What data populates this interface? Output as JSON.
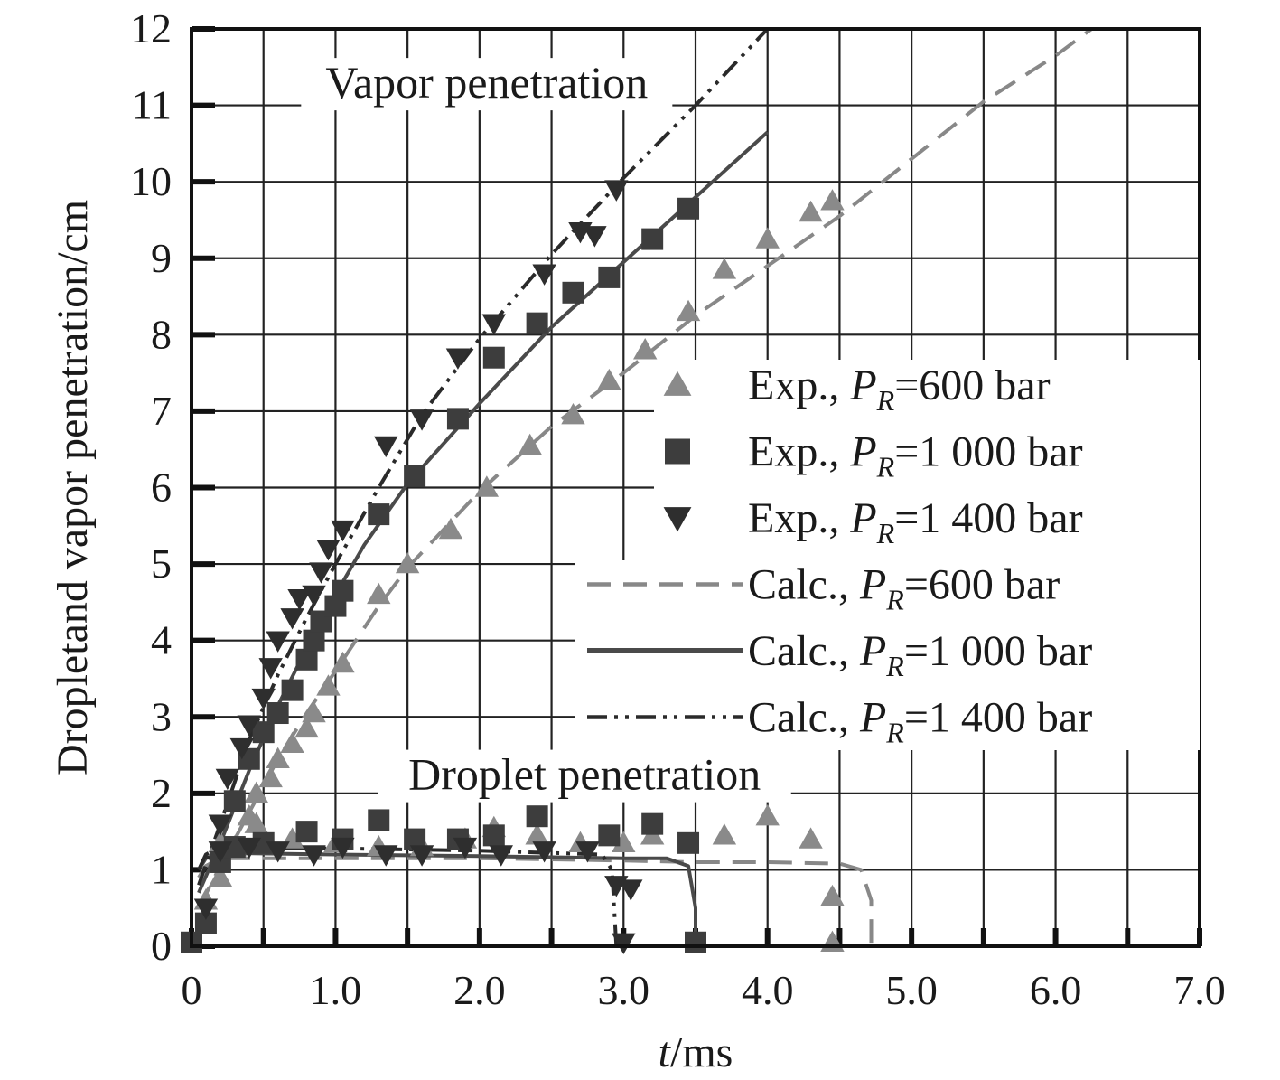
{
  "chart_data": {
    "type": "scatter",
    "title": "",
    "xlabel": {
      "italic": "t",
      "rest": "/ms"
    },
    "ylabel": "Dropletand vapor penetration/cm",
    "xlim": [
      0,
      7.0
    ],
    "ylim": [
      0,
      12
    ],
    "x_ticks": [
      0,
      0.5,
      1.0,
      1.5,
      2.0,
      2.5,
      3.0,
      3.5,
      4.0,
      4.5,
      5.0,
      5.5,
      6.0,
      6.5,
      7.0
    ],
    "x_tick_labels": [
      "0",
      "1.0",
      "2.0",
      "3.0",
      "4.0",
      "5.0",
      "6.0",
      "7.0"
    ],
    "x_tick_label_values": [
      0,
      1.0,
      2.0,
      3.0,
      4.0,
      5.0,
      6.0,
      7.0
    ],
    "y_ticks": [
      0,
      1,
      2,
      3,
      4,
      5,
      6,
      7,
      8,
      9,
      10,
      11,
      12
    ],
    "y_tick_labels": [
      "0",
      "1",
      "2",
      "3",
      "4",
      "5",
      "6",
      "7",
      "8",
      "9",
      "10",
      "11",
      "12"
    ],
    "grid": true,
    "annotations": [
      {
        "text": "Vapor penetration",
        "x": 2.05,
        "y": 11.1
      },
      {
        "text": "Droplet penetration",
        "x": 2.73,
        "y": 2.05
      }
    ],
    "legend": {
      "placement": "right",
      "entries": [
        {
          "prefix": "Exp., ",
          "sub": "R",
          "suffix": "=600 bar",
          "series": "exp600"
        },
        {
          "prefix": "Exp., ",
          "sub": "R",
          "suffix": "=1 000 bar",
          "series": "exp1000"
        },
        {
          "prefix": "Exp., ",
          "sub": "R",
          "suffix": "=1 400 bar",
          "series": "exp1400"
        },
        {
          "prefix": "Calc., ",
          "sub": "R",
          "suffix": "=600 bar",
          "series": "calc600"
        },
        {
          "prefix": "Calc., ",
          "sub": "R",
          "suffix": "=1 000 bar",
          "series": "calc1000"
        },
        {
          "prefix": "Calc.,  ",
          "sub": "R",
          "suffix": "=1 400 bar",
          "series": "calc1400"
        }
      ]
    },
    "series": [
      {
        "id": "exp600",
        "kind": "marker",
        "marker": "triangle-up",
        "color": "#8a8a8a",
        "vapor": [
          [
            0.1,
            0.6
          ],
          [
            0.2,
            0.9
          ],
          [
            0.3,
            1.3
          ],
          [
            0.4,
            1.7
          ],
          [
            0.45,
            2.0
          ],
          [
            0.55,
            2.2
          ],
          [
            0.6,
            2.45
          ],
          [
            0.7,
            2.65
          ],
          [
            0.8,
            2.85
          ],
          [
            0.85,
            3.05
          ],
          [
            0.95,
            3.4
          ],
          [
            1.05,
            3.7
          ],
          [
            1.3,
            4.6
          ],
          [
            1.5,
            5.0
          ],
          [
            1.8,
            5.45
          ],
          [
            2.05,
            6.0
          ],
          [
            2.35,
            6.55
          ],
          [
            2.65,
            6.95
          ],
          [
            2.9,
            7.4
          ],
          [
            3.15,
            7.8
          ],
          [
            3.45,
            8.3
          ],
          [
            3.7,
            8.85
          ],
          [
            4.0,
            9.25
          ],
          [
            4.3,
            9.6
          ],
          [
            4.45,
            9.75
          ]
        ],
        "droplet": [
          [
            0.2,
            1.35
          ],
          [
            0.45,
            1.6
          ],
          [
            0.7,
            1.4
          ],
          [
            1.0,
            1.35
          ],
          [
            1.3,
            1.3
          ],
          [
            1.6,
            1.3
          ],
          [
            1.9,
            1.4
          ],
          [
            2.1,
            1.55
          ],
          [
            2.4,
            1.45
          ],
          [
            2.7,
            1.35
          ],
          [
            3.0,
            1.35
          ],
          [
            3.2,
            1.45
          ],
          [
            3.7,
            1.45
          ],
          [
            4.0,
            1.7
          ],
          [
            4.3,
            1.4
          ],
          [
            4.45,
            0.65
          ],
          [
            4.45,
            0.05
          ]
        ]
      },
      {
        "id": "exp1000",
        "kind": "marker",
        "marker": "square",
        "color": "#3d3d3d",
        "vapor": [
          [
            0.0,
            0.05
          ],
          [
            0.1,
            0.3
          ],
          [
            0.2,
            1.1
          ],
          [
            0.3,
            1.9
          ],
          [
            0.4,
            2.45
          ],
          [
            0.5,
            2.8
          ],
          [
            0.6,
            3.05
          ],
          [
            0.7,
            3.35
          ],
          [
            0.8,
            3.75
          ],
          [
            0.85,
            4.0
          ],
          [
            0.9,
            4.25
          ],
          [
            1.0,
            4.45
          ],
          [
            1.05,
            4.65
          ],
          [
            1.3,
            5.65
          ],
          [
            1.55,
            6.15
          ],
          [
            1.85,
            6.9
          ],
          [
            2.1,
            7.7
          ],
          [
            2.4,
            8.15
          ],
          [
            2.65,
            8.55
          ],
          [
            2.9,
            8.75
          ],
          [
            3.2,
            9.25
          ],
          [
            3.45,
            9.65
          ]
        ],
        "droplet": [
          [
            0.3,
            1.3
          ],
          [
            0.5,
            1.35
          ],
          [
            0.8,
            1.5
          ],
          [
            1.05,
            1.4
          ],
          [
            1.3,
            1.65
          ],
          [
            1.55,
            1.4
          ],
          [
            1.85,
            1.4
          ],
          [
            2.1,
            1.45
          ],
          [
            2.4,
            1.7
          ],
          [
            2.9,
            1.45
          ],
          [
            3.2,
            1.6
          ],
          [
            3.45,
            1.35
          ],
          [
            3.5,
            0.05
          ]
        ]
      },
      {
        "id": "exp1400",
        "kind": "marker",
        "marker": "triangle-down",
        "color": "#2e2e2e",
        "vapor": [
          [
            0.1,
            0.5
          ],
          [
            0.2,
            1.25
          ],
          [
            0.25,
            2.2
          ],
          [
            0.35,
            2.6
          ],
          [
            0.4,
            2.9
          ],
          [
            0.5,
            3.25
          ],
          [
            0.55,
            3.65
          ],
          [
            0.6,
            4.0
          ],
          [
            0.7,
            4.3
          ],
          [
            0.75,
            4.55
          ],
          [
            0.85,
            4.6
          ],
          [
            0.9,
            4.9
          ],
          [
            0.95,
            5.2
          ],
          [
            1.05,
            5.45
          ],
          [
            1.35,
            6.55
          ],
          [
            1.6,
            6.9
          ],
          [
            1.85,
            7.7
          ],
          [
            2.1,
            8.15
          ],
          [
            2.45,
            8.8
          ],
          [
            2.7,
            9.35
          ],
          [
            2.8,
            9.3
          ],
          [
            2.95,
            9.9
          ]
        ],
        "droplet": [
          [
            0.2,
            1.6
          ],
          [
            0.4,
            1.3
          ],
          [
            0.6,
            1.25
          ],
          [
            0.85,
            1.2
          ],
          [
            1.05,
            1.3
          ],
          [
            1.35,
            1.2
          ],
          [
            1.6,
            1.2
          ],
          [
            1.9,
            1.3
          ],
          [
            2.15,
            1.2
          ],
          [
            2.45,
            1.25
          ],
          [
            2.75,
            1.25
          ],
          [
            2.95,
            0.8
          ],
          [
            3.05,
            0.75
          ],
          [
            3.0,
            0.05
          ]
        ]
      },
      {
        "id": "calc600",
        "kind": "line",
        "dash": "dashed",
        "color": "#888888",
        "vapor": [
          [
            0.05,
            0.5
          ],
          [
            0.2,
            1.05
          ],
          [
            0.4,
            1.75
          ],
          [
            0.6,
            2.45
          ],
          [
            0.8,
            3.05
          ],
          [
            1.0,
            3.6
          ],
          [
            1.3,
            4.45
          ],
          [
            1.5,
            4.95
          ],
          [
            2.0,
            5.95
          ],
          [
            2.5,
            6.8
          ],
          [
            3.0,
            7.5
          ],
          [
            3.5,
            8.25
          ],
          [
            4.0,
            8.9
          ],
          [
            4.5,
            9.55
          ],
          [
            5.0,
            10.3
          ],
          [
            5.5,
            11.05
          ],
          [
            6.0,
            11.65
          ],
          [
            6.25,
            12.0
          ]
        ],
        "droplet": [
          [
            0.05,
            0.9
          ],
          [
            0.1,
            1.05
          ],
          [
            0.2,
            1.15
          ],
          [
            1.0,
            1.15
          ],
          [
            2.0,
            1.15
          ],
          [
            3.0,
            1.12
          ],
          [
            3.5,
            1.1
          ],
          [
            4.0,
            1.1
          ],
          [
            4.5,
            1.08
          ],
          [
            4.65,
            1.0
          ],
          [
            4.72,
            0.6
          ],
          [
            4.72,
            0.0
          ]
        ]
      },
      {
        "id": "calc1000",
        "kind": "line",
        "dash": "solid",
        "color": "#4a4a4a",
        "vapor": [
          [
            0.05,
            0.7
          ],
          [
            0.2,
            1.35
          ],
          [
            0.4,
            2.3
          ],
          [
            0.6,
            3.15
          ],
          [
            0.8,
            3.9
          ],
          [
            1.0,
            4.6
          ],
          [
            1.2,
            5.25
          ],
          [
            1.5,
            6.05
          ],
          [
            2.0,
            7.1
          ],
          [
            2.5,
            8.1
          ],
          [
            3.0,
            8.95
          ],
          [
            3.5,
            9.8
          ],
          [
            4.0,
            10.65
          ]
        ],
        "droplet": [
          [
            0.05,
            1.0
          ],
          [
            0.1,
            1.15
          ],
          [
            0.2,
            1.22
          ],
          [
            1.0,
            1.2
          ],
          [
            2.0,
            1.18
          ],
          [
            3.0,
            1.15
          ],
          [
            3.3,
            1.15
          ],
          [
            3.45,
            1.05
          ],
          [
            3.5,
            0.5
          ],
          [
            3.5,
            0.0
          ]
        ]
      },
      {
        "id": "calc1400",
        "kind": "line",
        "dash": "dashdotdot",
        "color": "#2a2a2a",
        "vapor": [
          [
            0.05,
            0.8
          ],
          [
            0.2,
            1.6
          ],
          [
            0.4,
            2.7
          ],
          [
            0.6,
            3.55
          ],
          [
            0.8,
            4.3
          ],
          [
            1.0,
            5.0
          ],
          [
            1.3,
            6.0
          ],
          [
            1.6,
            6.95
          ],
          [
            2.0,
            7.95
          ],
          [
            2.5,
            9.05
          ],
          [
            3.0,
            10.05
          ],
          [
            3.5,
            11.0
          ],
          [
            4.0,
            12.0
          ]
        ],
        "droplet": [
          [
            0.05,
            1.0
          ],
          [
            0.1,
            1.2
          ],
          [
            0.2,
            1.3
          ],
          [
            1.0,
            1.28
          ],
          [
            2.0,
            1.25
          ],
          [
            2.5,
            1.22
          ],
          [
            2.85,
            1.2
          ],
          [
            2.92,
            1.0
          ],
          [
            2.95,
            0.0
          ]
        ]
      }
    ]
  }
}
